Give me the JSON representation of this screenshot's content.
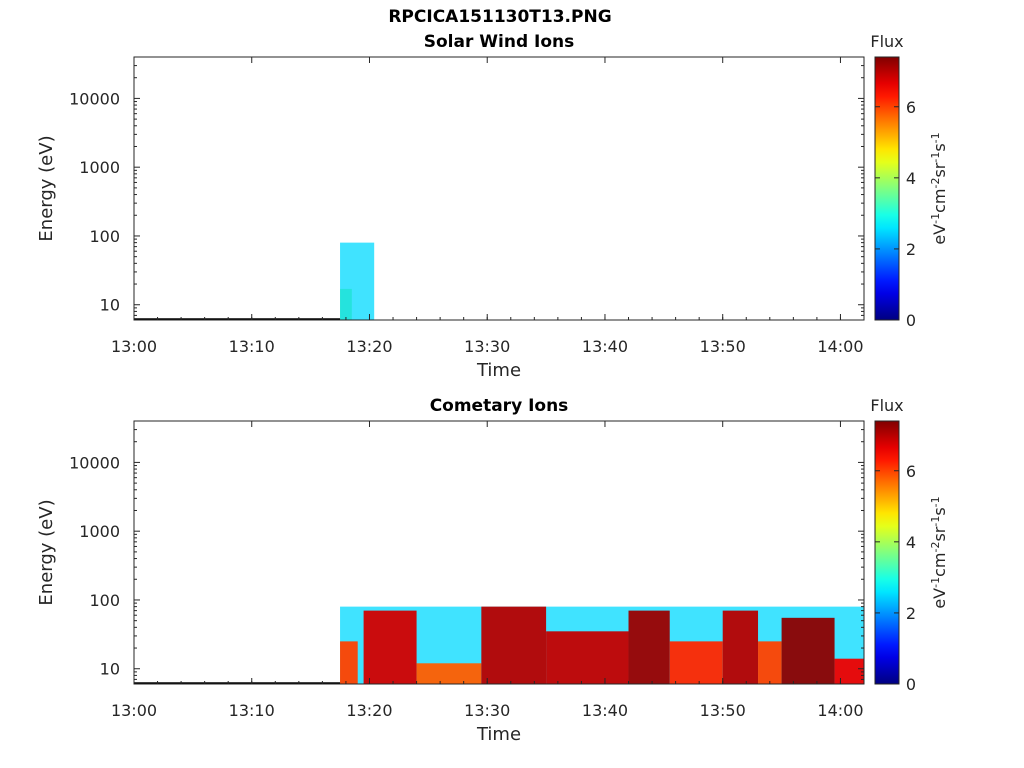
{
  "page": {
    "title": "RPCICA151130T13.PNG"
  },
  "colorbar": {
    "label": "Flux",
    "unit_parts": [
      "eV",
      "-1",
      "cm",
      "-2",
      "sr",
      "-1",
      "s",
      "-1"
    ],
    "ticks": [
      0,
      2,
      4,
      6
    ],
    "range": [
      0,
      7.4
    ],
    "colormap": "jet"
  },
  "chart_data": [
    {
      "type": "heatmap",
      "title": "Solar Wind Ions",
      "xlabel": "Time",
      "ylabel": "Energy (eV)",
      "x_ticks": [
        "13:00",
        "13:10",
        "13:20",
        "13:30",
        "13:40",
        "13:50",
        "14:00"
      ],
      "y_ticks": [
        10,
        100,
        1000,
        10000
      ],
      "y_scale": "log",
      "xlim": [
        "13:00",
        "14:02"
      ],
      "ylim": [
        6,
        40000
      ],
      "series": [
        {
          "t_start": "13:17.5",
          "t_end": "13:18.5",
          "e_low": 6,
          "e_high": 17,
          "flux": 3.8
        },
        {
          "t_start": "13:17.5",
          "t_end": "13:20.4",
          "e_low": 6,
          "e_high": 80,
          "flux": 2.5
        }
      ]
    },
    {
      "type": "heatmap",
      "title": "Cometary Ions",
      "xlabel": "Time",
      "ylabel": "Energy (eV)",
      "x_ticks": [
        "13:00",
        "13:10",
        "13:20",
        "13:30",
        "13:40",
        "13:50",
        "14:00"
      ],
      "y_ticks": [
        10,
        100,
        1000,
        10000
      ],
      "y_scale": "log",
      "xlim": [
        "13:00",
        "14:02"
      ],
      "ylim": [
        6,
        40000
      ],
      "series": [
        {
          "t_start": "13:17.5",
          "t_end": "14:02",
          "e_low": 6,
          "e_high": 80,
          "flux": 2.5
        },
        {
          "t_start": "13:17.5",
          "t_end": "13:19.0",
          "e_low": 6,
          "e_high": 25,
          "flux": 6.0
        },
        {
          "t_start": "13:19.5",
          "t_end": "13:24.0",
          "e_low": 6,
          "e_high": 70,
          "flux": 6.8
        },
        {
          "t_start": "13:24.0",
          "t_end": "13:29.5",
          "e_low": 6,
          "e_high": 12,
          "flux": 5.8
        },
        {
          "t_start": "13:29.5",
          "t_end": "13:35.0",
          "e_low": 6,
          "e_high": 80,
          "flux": 7.0
        },
        {
          "t_start": "13:35.0",
          "t_end": "13:42.0",
          "e_low": 6,
          "e_high": 35,
          "flux": 6.9
        },
        {
          "t_start": "13:42.0",
          "t_end": "13:45.5",
          "e_low": 6,
          "e_high": 70,
          "flux": 7.2
        },
        {
          "t_start": "13:45.5",
          "t_end": "13:50.0",
          "e_low": 6,
          "e_high": 25,
          "flux": 6.2
        },
        {
          "t_start": "13:50.0",
          "t_end": "13:53.0",
          "e_low": 6,
          "e_high": 70,
          "flux": 7.0
        },
        {
          "t_start": "13:53.0",
          "t_end": "13:55.0",
          "e_low": 6,
          "e_high": 25,
          "flux": 6.0
        },
        {
          "t_start": "13:55.0",
          "t_end": "13:59.5",
          "e_low": 6,
          "e_high": 55,
          "flux": 7.3
        },
        {
          "t_start": "13:59.5",
          "t_end": "14:02",
          "e_low": 6,
          "e_high": 14,
          "flux": 6.6
        }
      ]
    }
  ]
}
